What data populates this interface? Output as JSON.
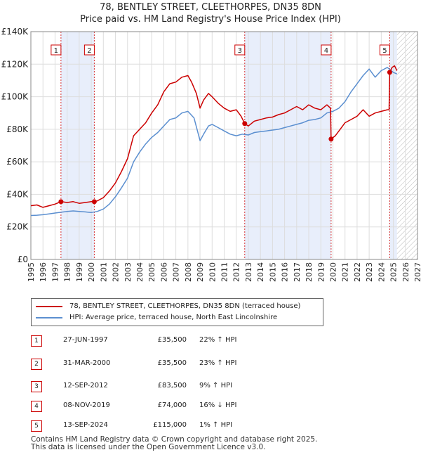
{
  "title": {
    "line1": "78, BENTLEY STREET, CLEETHORPES, DN35 8DN",
    "line2": "Price paid vs. HM Land Registry's House Price Index (HPI)"
  },
  "colors": {
    "price_line": "#cc0000",
    "hpi_line": "#5b8fd0",
    "shade": "#e8eefb",
    "grid": "#dddddd",
    "hatch": "#999999"
  },
  "legend": {
    "price_label": "78, BENTLEY STREET, CLEETHORPES, DN35 8DN (terraced house)",
    "hpi_label": "HPI: Average price, terraced house, North East Lincolnshire"
  },
  "sales": [
    {
      "num": "1",
      "date": "27-JUN-1997",
      "price": "£35,500",
      "hpi": "22% ↑ HPI"
    },
    {
      "num": "2",
      "date": "31-MAR-2000",
      "price": "£35,500",
      "hpi": "23% ↑ HPI"
    },
    {
      "num": "3",
      "date": "12-SEP-2012",
      "price": "£83,500",
      "hpi": "9% ↑ HPI"
    },
    {
      "num": "4",
      "date": "08-NOV-2019",
      "price": "£74,000",
      "hpi": "16% ↓ HPI"
    },
    {
      "num": "5",
      "date": "13-SEP-2024",
      "price": "£115,000",
      "hpi": "1% ↑ HPI"
    }
  ],
  "footer": {
    "line1": "Contains HM Land Registry data © Crown copyright and database right 2025.",
    "line2": "This data is licensed under the Open Government Licence v3.0."
  },
  "chart_data": {
    "type": "line",
    "title": "Price paid vs. HM Land Registry's House Price Index (HPI)",
    "xlabel": "",
    "ylabel": "",
    "xlim": [
      1995,
      2027
    ],
    "ylim": [
      0,
      140000
    ],
    "x_ticks": [
      "1995",
      "1996",
      "1997",
      "1998",
      "1999",
      "2000",
      "2001",
      "2002",
      "2003",
      "2004",
      "2005",
      "2006",
      "2007",
      "2008",
      "2009",
      "2010",
      "2011",
      "2012",
      "2013",
      "2014",
      "2015",
      "2016",
      "2017",
      "2018",
      "2019",
      "2020",
      "2021",
      "2022",
      "2023",
      "2024",
      "2025",
      "2026",
      "2027"
    ],
    "y_ticks": [
      {
        "value": 0,
        "label": "£0"
      },
      {
        "value": 20000,
        "label": "£20K"
      },
      {
        "value": 40000,
        "label": "£40K"
      },
      {
        "value": 60000,
        "label": "£60K"
      },
      {
        "value": 80000,
        "label": "£80K"
      },
      {
        "value": 100000,
        "label": "£100K"
      },
      {
        "value": 120000,
        "label": "£120K"
      },
      {
        "value": 140000,
        "label": "£140K"
      }
    ],
    "shaded_spans": [
      [
        1997.49,
        2000.25
      ],
      [
        2012.7,
        2019.85
      ],
      [
        2024.7,
        2025.3
      ]
    ],
    "future_hatch_from": 2025.3,
    "sale_markers": [
      {
        "label": "1",
        "x": 1997.49,
        "y": 35500
      },
      {
        "label": "2",
        "x": 2000.25,
        "y": 35500
      },
      {
        "label": "3",
        "x": 2012.7,
        "y": 83500
      },
      {
        "label": "4",
        "x": 2019.85,
        "y": 74000
      },
      {
        "label": "5",
        "x": 2024.7,
        "y": 115000
      }
    ],
    "series": [
      {
        "name": "78, BENTLEY STREET, CLEETHORPES, DN35 8DN (terraced house)",
        "x": [
          1995.0,
          1995.5,
          1996.0,
          1996.5,
          1997.0,
          1997.49,
          1998.0,
          1998.5,
          1999.0,
          1999.5,
          2000.0,
          2000.25,
          2000.5,
          2001.0,
          2001.5,
          2002.0,
          2002.5,
          2003.0,
          2003.5,
          2004.0,
          2004.5,
          2005.0,
          2005.5,
          2006.0,
          2006.5,
          2007.0,
          2007.5,
          2008.0,
          2008.3,
          2008.7,
          2009.0,
          2009.3,
          2009.7,
          2010.0,
          2010.5,
          2011.0,
          2011.5,
          2012.0,
          2012.4,
          2012.7,
          2013.0,
          2013.5,
          2014.0,
          2014.5,
          2015.0,
          2015.5,
          2016.0,
          2016.5,
          2017.0,
          2017.5,
          2018.0,
          2018.5,
          2019.0,
          2019.5,
          2019.8,
          2019.85,
          2020.2,
          2020.6,
          2021.0,
          2021.5,
          2022.0,
          2022.5,
          2023.0,
          2023.5,
          2024.0,
          2024.5,
          2024.65,
          2024.7,
          2024.9,
          2025.1,
          2025.3
        ],
        "y": [
          33000,
          33500,
          32000,
          33000,
          34000,
          35500,
          35000,
          35500,
          34500,
          35000,
          35500,
          35500,
          36000,
          38000,
          42000,
          47000,
          54000,
          62000,
          76000,
          80000,
          84000,
          90000,
          95000,
          103000,
          108000,
          109000,
          112000,
          113000,
          109000,
          102000,
          93000,
          98000,
          102000,
          100000,
          96000,
          93000,
          91000,
          92000,
          88000,
          83500,
          82000,
          85000,
          86000,
          87000,
          87500,
          89000,
          90000,
          92000,
          94000,
          92000,
          95000,
          93000,
          92000,
          95000,
          93000,
          74000,
          76000,
          80000,
          84000,
          86000,
          88000,
          92000,
          88000,
          90000,
          91000,
          92000,
          92000,
          115000,
          118000,
          119000,
          116000
        ]
      },
      {
        "name": "HPI: Average price, terraced house, North East Lincolnshire",
        "x": [
          1995.0,
          1995.5,
          1996.0,
          1996.5,
          1997.0,
          1997.5,
          1998.0,
          1998.5,
          1999.0,
          1999.5,
          2000.0,
          2000.5,
          2001.0,
          2001.5,
          2002.0,
          2002.5,
          2003.0,
          2003.5,
          2004.0,
          2004.5,
          2005.0,
          2005.5,
          2006.0,
          2006.5,
          2007.0,
          2007.5,
          2008.0,
          2008.5,
          2009.0,
          2009.3,
          2009.7,
          2010.0,
          2010.5,
          2011.0,
          2011.5,
          2012.0,
          2012.5,
          2013.0,
          2013.5,
          2014.0,
          2014.5,
          2015.0,
          2015.5,
          2016.0,
          2016.5,
          2017.0,
          2017.5,
          2018.0,
          2018.5,
          2019.0,
          2019.5,
          2020.0,
          2020.5,
          2021.0,
          2021.5,
          2022.0,
          2022.5,
          2023.0,
          2023.5,
          2024.0,
          2024.5,
          2025.0,
          2025.3
        ],
        "y": [
          27000,
          27200,
          27500,
          28000,
          28500,
          29000,
          29500,
          29800,
          29500,
          29200,
          28800,
          29500,
          31000,
          34000,
          38500,
          44000,
          50000,
          60000,
          66000,
          71000,
          75000,
          78000,
          82000,
          86000,
          87000,
          90000,
          91000,
          87000,
          73000,
          77000,
          82000,
          83000,
          81000,
          79000,
          77000,
          76000,
          77000,
          76500,
          78000,
          78500,
          79000,
          79500,
          80000,
          81000,
          82000,
          83000,
          84000,
          85500,
          86000,
          87000,
          90000,
          91000,
          93000,
          97000,
          103000,
          108000,
          113000,
          117000,
          112000,
          116000,
          118000,
          115000,
          114000
        ]
      }
    ]
  }
}
